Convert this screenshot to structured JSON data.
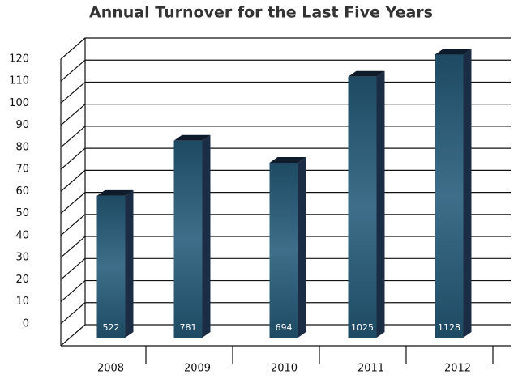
{
  "chart_data": {
    "type": "bar3d",
    "title": "Annual Turnover for the Last Five Years",
    "categories": [
      "2008",
      "2009",
      "2010",
      "2011",
      "2012"
    ],
    "values": [
      58,
      83,
      73,
      112,
      122
    ],
    "inner_labels": [
      522,
      781,
      694,
      1025,
      1128
    ],
    "color": "#2f5f7a",
    "ylim": [
      -10,
      120
    ],
    "yticks": [
      0,
      10,
      20,
      30,
      40,
      50,
      60,
      70,
      80,
      90,
      100,
      110,
      120
    ],
    "grid": true
  }
}
